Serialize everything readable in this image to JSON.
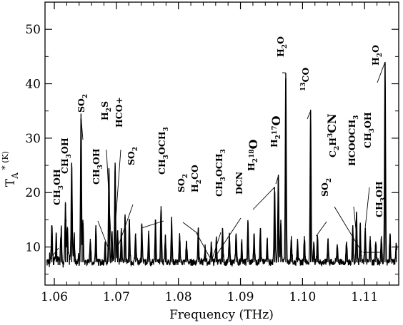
{
  "chart_data": {
    "type": "line",
    "title": "",
    "xlabel": "Frequency (THz)",
    "ylabel": "TA* (K)",
    "xlim": [
      1.0585,
      1.1155
    ],
    "ylim": [
      3,
      55
    ],
    "x_ticks": [
      1.06,
      1.07,
      1.08,
      1.09,
      1.1,
      1.11
    ],
    "x_tick_labels": [
      "1.06",
      "1.07",
      "1.08",
      "1.09",
      "1.10",
      "1.11"
    ],
    "y_ticks": [
      10,
      20,
      30,
      40,
      50
    ],
    "y_tick_labels": [
      "10",
      "20",
      "30",
      "40",
      "50"
    ],
    "grid": false,
    "baseline_level": 7.2,
    "series": [
      {
        "peaks": [
          {
            "x": 1.0596,
            "y": 14.0
          },
          {
            "x": 1.0603,
            "y": 11.0
          },
          {
            "x": 1.0611,
            "y": 13.5
          },
          {
            "x": 1.0618,
            "y": 18.0
          },
          {
            "x": 1.0621,
            "y": 13.0
          },
          {
            "x": 1.0628,
            "y": 25.5
          },
          {
            "x": 1.0632,
            "y": 12.0
          },
          {
            "x": 1.0643,
            "y": 34.5
          },
          {
            "x": 1.0646,
            "y": 15.0
          },
          {
            "x": 1.0658,
            "y": 11.5
          },
          {
            "x": 1.0667,
            "y": 14.0
          },
          {
            "x": 1.0682,
            "y": 11.0
          },
          {
            "x": 1.0688,
            "y": 24.5
          },
          {
            "x": 1.0693,
            "y": 12.5
          },
          {
            "x": 1.0698,
            "y": 25.5
          },
          {
            "x": 1.0702,
            "y": 13.0
          },
          {
            "x": 1.0708,
            "y": 13.0
          },
          {
            "x": 1.0714,
            "y": 16.0
          },
          {
            "x": 1.0721,
            "y": 15.0
          },
          {
            "x": 1.0731,
            "y": 12.5
          },
          {
            "x": 1.0741,
            "y": 14.0
          },
          {
            "x": 1.0752,
            "y": 13.0
          },
          {
            "x": 1.0763,
            "y": 15.0
          },
          {
            "x": 1.0772,
            "y": 17.5
          },
          {
            "x": 1.0779,
            "y": 12.0
          },
          {
            "x": 1.0789,
            "y": 15.0
          },
          {
            "x": 1.0802,
            "y": 12.0
          },
          {
            "x": 1.0813,
            "y": 11.0
          },
          {
            "x": 1.0832,
            "y": 13.5
          },
          {
            "x": 1.0843,
            "y": 10.0
          },
          {
            "x": 1.0853,
            "y": 11.0
          },
          {
            "x": 1.0861,
            "y": 11.5
          },
          {
            "x": 1.0871,
            "y": 13.5
          },
          {
            "x": 1.0882,
            "y": 12.0
          },
          {
            "x": 1.0893,
            "y": 12.5
          },
          {
            "x": 1.0902,
            "y": 11.0
          },
          {
            "x": 1.0912,
            "y": 14.5
          },
          {
            "x": 1.0922,
            "y": 12.5
          },
          {
            "x": 1.0932,
            "y": 13.5
          },
          {
            "x": 1.0943,
            "y": 11.5
          },
          {
            "x": 1.0955,
            "y": 21.0
          },
          {
            "x": 1.0961,
            "y": 23.0
          },
          {
            "x": 1.0965,
            "y": 15.0
          },
          {
            "x": 1.0973,
            "y": 42.0
          },
          {
            "x": 1.0982,
            "y": 12.0
          },
          {
            "x": 1.0992,
            "y": 11.5
          },
          {
            "x": 1.1003,
            "y": 12.0
          },
          {
            "x": 1.1013,
            "y": 35.0
          },
          {
            "x": 1.1018,
            "y": 11.0
          },
          {
            "x": 1.1024,
            "y": 12.0
          },
          {
            "x": 1.1041,
            "y": 11.5
          },
          {
            "x": 1.1056,
            "y": 10.5
          },
          {
            "x": 1.1071,
            "y": 11.0
          },
          {
            "x": 1.1081,
            "y": 14.0
          },
          {
            "x": 1.1087,
            "y": 16.5
          },
          {
            "x": 1.1093,
            "y": 14.0
          },
          {
            "x": 1.1101,
            "y": 13.5
          },
          {
            "x": 1.1109,
            "y": 12.0
          },
          {
            "x": 1.1118,
            "y": 11.0
          },
          {
            "x": 1.1127,
            "y": 12.0
          },
          {
            "x": 1.1133,
            "y": 44.0
          },
          {
            "x": 1.1141,
            "y": 12.5
          },
          {
            "x": 1.1151,
            "y": 10.5
          }
        ]
      }
    ],
    "annotations": [
      {
        "parts": [
          "CH",
          "3",
          "OH"
        ],
        "x": 1.0598,
        "y": 8.5
      },
      {
        "parts": [
          "CH",
          "3",
          "OH"
        ],
        "x": 1.0618,
        "y": 14.5
      },
      {
        "parts": [
          "SO",
          "2",
          ""
        ],
        "x": 1.0643,
        "y": 34.0
      },
      {
        "parts": [
          "CH",
          "3",
          "OH"
        ],
        "x": 1.0688,
        "y": 9.5
      },
      {
        "parts": [
          "H",
          "2",
          "S"
        ],
        "x": 1.0692,
        "y": 10.0
      },
      {
        "parts": [
          "HCO+"
        ],
        "x": 1.0696,
        "y": 10.5
      },
      {
        "parts": [
          "SO",
          "2",
          ""
        ],
        "x": 1.0704,
        "y": 10.5
      },
      {
        "parts": [
          "CH",
          "3",
          "OCH",
          "3"
        ],
        "x": 1.0741,
        "y": 13.5
      },
      {
        "parts": [
          "SO",
          "2",
          ""
        ],
        "x": 1.0831,
        "y": 12.5
      },
      {
        "parts": [
          "H",
          "2",
          "CO"
        ],
        "x": 1.0851,
        "y": 8.0
      },
      {
        "parts": [
          "CH",
          "3",
          "OCH",
          "3"
        ],
        "x": 1.0855,
        "y": 8.0
      },
      {
        "parts": [
          "DCN"
        ],
        "x": 1.0861,
        "y": 8.5
      },
      {
        "parts": [
          "H",
          "2",
          "",
          "18",
          "O"
        ],
        "x": 1.0955,
        "y": 21.0
      },
      {
        "parts": [
          "H",
          "2",
          "",
          "17",
          "O"
        ],
        "x": 1.0961,
        "y": 23.0
      },
      {
        "parts": [
          "H",
          "2",
          "O"
        ],
        "x": 1.0973,
        "y": 42.0
      },
      {
        "parts": [
          "13",
          "CO"
        ],
        "x": 1.1013,
        "y": 35.0
      },
      {
        "parts": [
          "SO",
          "2",
          ""
        ],
        "x": 1.1022,
        "y": 12.0
      },
      {
        "parts": [
          "C",
          "2",
          "H",
          "3",
          "CN"
        ],
        "x": 1.1096,
        "y": 9.0
      },
      {
        "parts": [
          "HCOOCH",
          "3",
          ""
        ],
        "x": 1.1087,
        "y": 12.0
      },
      {
        "parts": [
          "CH",
          "3",
          "OH"
        ],
        "x": 1.1101,
        "y": 13.5
      },
      {
        "parts": [
          "CH",
          "3",
          "OH"
        ],
        "x": 1.1098,
        "y": 9.0
      },
      {
        "parts": [
          "H",
          "2",
          "O"
        ],
        "x": 1.1133,
        "y": 44.0
      }
    ]
  }
}
